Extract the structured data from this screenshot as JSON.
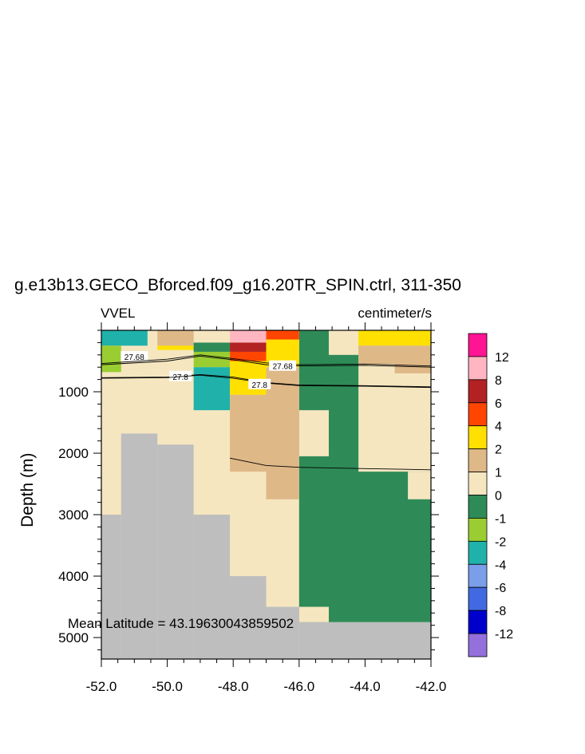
{
  "chart_data": {
    "type": "heatmap",
    "title": "g.e13b13.GECO_Bforced.f09_g16.20TR_SPIN.ctrl, 311-350",
    "subtitle_left": "VVEL",
    "subtitle_right": "centimeter/s",
    "ylabel": "Depth (m)",
    "xlabel": "",
    "xlim": [
      -52,
      -42
    ],
    "ylim": [
      5350,
      0
    ],
    "x_ticks": [
      "-52.0",
      "-50.0",
      "-48.0",
      "-46.0",
      "-44.0",
      "-42.0"
    ],
    "x_tick_values": [
      -52,
      -50,
      -48,
      -46,
      -44,
      -42
    ],
    "y_ticks": [
      "1000",
      "2000",
      "3000",
      "4000",
      "5000"
    ],
    "y_tick_values": [
      1000,
      2000,
      3000,
      4000,
      5000
    ],
    "annotation": "Mean Latitude = 43.19630043859502",
    "colorbar": {
      "labels": [
        "12",
        "8",
        "6",
        "4",
        "2",
        "1",
        "0",
        "-1",
        "-2",
        "-4",
        "-6",
        "-8",
        "-12"
      ],
      "colors": [
        "#ff1493",
        "#ffb6c1",
        "#b22222",
        "#ff4500",
        "#ffe000",
        "#deb887",
        "#f5e6c0",
        "#2e8b57",
        "#9acd32",
        "#20b2aa",
        "#7a9ee8",
        "#4169e1",
        "#0000cd",
        "#9370db"
      ]
    },
    "class_colors": {
      "L": "#f5e6c0",
      "G": "#2e8b57",
      "N": "#deb887",
      "Y": "#ffe000",
      "T": "#20b2aa",
      "Q": "#9acd32",
      "R": "#b22222",
      "O": "#ff4500",
      "P": "#ffb6c1",
      "X": "#bebebe"
    },
    "cells": [
      {
        "x": [
          -52,
          -42
        ],
        "y": [
          0,
          5350
        ],
        "c": "L"
      },
      {
        "x": [
          -46,
          -42
        ],
        "y": [
          0,
          4750
        ],
        "c": "G"
      },
      {
        "x": [
          -46,
          -45.1
        ],
        "y": [
          1300,
          2050
        ],
        "c": "L"
      },
      {
        "x": [
          -46,
          -45.1
        ],
        "y": [
          4500,
          4750
        ],
        "c": "L"
      },
      {
        "x": [
          -45.1,
          -44.2
        ],
        "y": [
          0,
          400
        ],
        "c": "L"
      },
      {
        "x": [
          -44.2,
          -42
        ],
        "y": [
          0,
          2300
        ],
        "c": "L"
      },
      {
        "x": [
          -42.7,
          -42
        ],
        "y": [
          2300,
          2750
        ],
        "c": "L"
      },
      {
        "x": [
          -52,
          -50.6
        ],
        "y": [
          0,
          250
        ],
        "c": "T"
      },
      {
        "x": [
          -52,
          -51.4
        ],
        "y": [
          250,
          680
        ],
        "c": "Q"
      },
      {
        "x": [
          -50.3,
          -49.2
        ],
        "y": [
          0,
          250
        ],
        "c": "N"
      },
      {
        "x": [
          -50.3,
          -49.2
        ],
        "y": [
          250,
          320
        ],
        "c": "Y"
      },
      {
        "x": [
          -49.2,
          -48.1
        ],
        "y": [
          200,
          350
        ],
        "c": "G"
      },
      {
        "x": [
          -49.2,
          -48.1
        ],
        "y": [
          350,
          600
        ],
        "c": "Q"
      },
      {
        "x": [
          -49.2,
          -48.1
        ],
        "y": [
          600,
          1300
        ],
        "c": "T"
      },
      {
        "x": [
          -48.1,
          -47.0
        ],
        "y": [
          0,
          200
        ],
        "c": "P"
      },
      {
        "x": [
          -48.1,
          -47.0
        ],
        "y": [
          200,
          350
        ],
        "c": "R"
      },
      {
        "x": [
          -48.1,
          -47.0
        ],
        "y": [
          350,
          500
        ],
        "c": "O"
      },
      {
        "x": [
          -48.1,
          -47.0
        ],
        "y": [
          500,
          1050
        ],
        "c": "Y"
      },
      {
        "x": [
          -48.1,
          -47.0
        ],
        "y": [
          1050,
          2300
        ],
        "c": "N"
      },
      {
        "x": [
          -47.0,
          -46
        ],
        "y": [
          0,
          150
        ],
        "c": "O"
      },
      {
        "x": [
          -47.0,
          -46
        ],
        "y": [
          150,
          600
        ],
        "c": "Y"
      },
      {
        "x": [
          -47.0,
          -46
        ],
        "y": [
          600,
          2750
        ],
        "c": "N"
      },
      {
        "x": [
          -44.2,
          -42
        ],
        "y": [
          0,
          250
        ],
        "c": "Y"
      },
      {
        "x": [
          -44.2,
          -43.1
        ],
        "y": [
          250,
          550
        ],
        "c": "N"
      },
      {
        "x": [
          -43.1,
          -42
        ],
        "y": [
          250,
          700
        ],
        "c": "N"
      },
      {
        "x": [
          -52,
          -51.4
        ],
        "y": [
          3000,
          5350
        ],
        "c": "X"
      },
      {
        "x": [
          -51.4,
          -50.3
        ],
        "y": [
          1680,
          5350
        ],
        "c": "X"
      },
      {
        "x": [
          -50.3,
          -49.2
        ],
        "y": [
          1860,
          5350
        ],
        "c": "X"
      },
      {
        "x": [
          -49.2,
          -48.1
        ],
        "y": [
          3000,
          5350
        ],
        "c": "X"
      },
      {
        "x": [
          -48.1,
          -47.0
        ],
        "y": [
          4000,
          5350
        ],
        "c": "X"
      },
      {
        "x": [
          -47.0,
          -46
        ],
        "y": [
          4500,
          5350
        ],
        "c": "X"
      },
      {
        "x": [
          -46,
          -42
        ],
        "y": [
          4750,
          5350
        ],
        "c": "X"
      }
    ],
    "contours": [
      {
        "label": "27.68",
        "label_at": [
          -51,
          430
        ],
        "x": [
          -52,
          -50,
          -49,
          -48,
          -47,
          -46,
          -44,
          -42
        ],
        "y": [
          560,
          500,
          420,
          480,
          560,
          580,
          570,
          600
        ]
      },
      {
        "label": "27.68",
        "label_at": [
          -46.5,
          580
        ],
        "x": [
          -52,
          -50,
          -49,
          -48,
          -47,
          -46,
          -44,
          -42
        ],
        "y": [
          540,
          470,
          400,
          460,
          530,
          560,
          550,
          580
        ]
      },
      {
        "label": "27.8",
        "label_at": [
          -49.6,
          750
        ],
        "x": [
          -52,
          -50,
          -49,
          -48,
          -47,
          -46,
          -44,
          -42
        ],
        "y": [
          770,
          760,
          720,
          760,
          850,
          890,
          900,
          920
        ]
      },
      {
        "label": "27.8",
        "label_at": [
          -47.2,
          880
        ],
        "x": [
          -52,
          -50,
          -49,
          -48,
          -47,
          -46,
          -44,
          -42
        ],
        "y": [
          780,
          770,
          730,
          780,
          860,
          900,
          910,
          930
        ]
      },
      {
        "label": "",
        "label_at": null,
        "x": [
          -48.1,
          -47,
          -46,
          -44,
          -42
        ],
        "y": [
          2080,
          2200,
          2230,
          2250,
          2270
        ]
      }
    ]
  }
}
